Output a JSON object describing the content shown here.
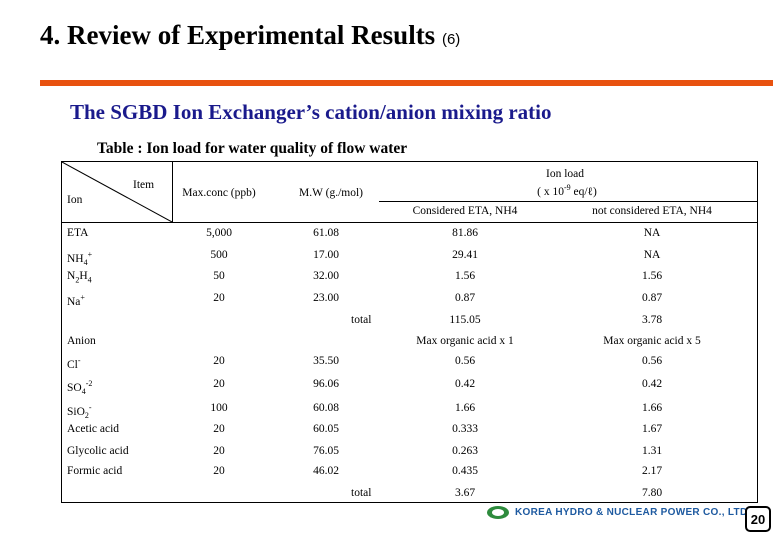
{
  "slide": {
    "title": "4. Review of Experimental Results",
    "title_suffix": "(6)",
    "subtitle": "The SGBD Ion Exchanger’s cation/anion mixing ratio",
    "table_caption": "Table : Ion load for water quality of flow water",
    "page_number": "20",
    "logo_text": "KOREA HYDRO & NUCLEAR POWER CO., LTD"
  },
  "table": {
    "header": {
      "item": "Item",
      "ion": "Ion",
      "max_conc": "Max.conc (ppb)",
      "mw": "M.W (g./mol)",
      "ion_load_title": "Ion load",
      "ion_load_unit": "( x 10",
      "ion_load_exp": "-9",
      "ion_load_unit_end": " eq/ℓ)",
      "considered": "Considered ETA, NH4",
      "not_considered": "not considered ETA, NH4"
    },
    "cations": [
      {
        "ion": "ETA",
        "max_conc": "5,000",
        "mw": "61.08",
        "considered": "81.86",
        "not_considered": "NA"
      },
      {
        "ion_main": "NH",
        "ion_sub": "4",
        "ion_sup": "+",
        "max_conc": "500",
        "mw": "17.00",
        "considered": "29.41",
        "not_considered": "NA"
      },
      {
        "ion_main": "N",
        "ion_sub": "2",
        "ion_main2": "H",
        "ion_sub2": "4",
        "max_conc": "50",
        "mw": "32.00",
        "considered": "1.56",
        "not_considered": "1.56"
      },
      {
        "ion_main": "Na",
        "ion_sup": "+",
        "max_conc": "20",
        "mw": "23.00",
        "considered": "0.87",
        "not_considered": "0.87"
      }
    ],
    "cation_total": {
      "label": "total",
      "considered": "115.05",
      "not_considered": "3.78"
    },
    "anion_header": {
      "label": "Anion",
      "considered": "Max organic acid x 1",
      "not_considered": "Max organic acid  x 5"
    },
    "anions": [
      {
        "ion_main": "Cl",
        "ion_sup": "-",
        "max_conc": "20",
        "mw": "35.50",
        "considered": "0.56",
        "not_considered": "0.56"
      },
      {
        "ion_main": "SO",
        "ion_sub": "4",
        "ion_sup": "-2",
        "max_conc": "20",
        "mw": "96.06",
        "considered": "0.42",
        "not_considered": "0.42"
      },
      {
        "ion_main": "SiO",
        "ion_sub": "2",
        "ion_sup": "-",
        "max_conc": "100",
        "mw": "60.08",
        "considered": "1.66",
        "not_considered": "1.66"
      },
      {
        "ion": "Acetic acid",
        "max_conc": "20",
        "mw": "60.05",
        "considered": "0.333",
        "not_considered": "1.67"
      },
      {
        "ion": "Glycolic acid",
        "max_conc": "20",
        "mw": "76.05",
        "considered": "0.263",
        "not_considered": "1.31"
      },
      {
        "ion": "Formic acid",
        "max_conc": "20",
        "mw": "46.02",
        "considered": "0.435",
        "not_considered": "2.17"
      }
    ],
    "anion_total": {
      "label": "total",
      "considered": "3.67",
      "not_considered": "7.80"
    }
  }
}
